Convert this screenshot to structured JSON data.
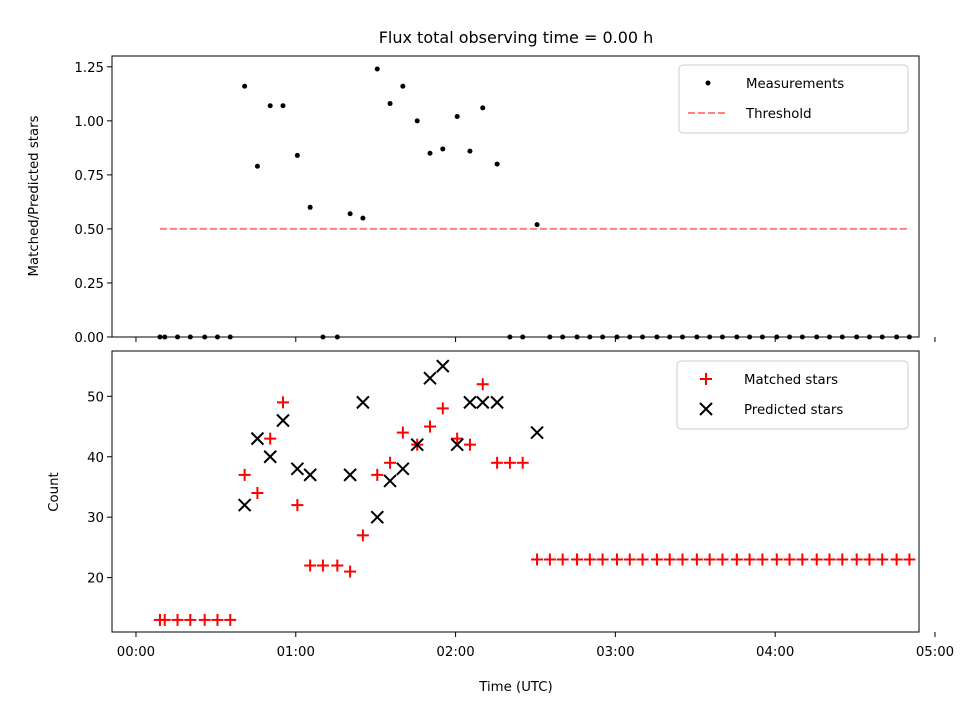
{
  "chart_data": [
    {
      "type": "scatter",
      "title": "Flux total observing time = 0.00 h",
      "xlabel": "",
      "ylabel": "Matched/Predicted stars",
      "xlim": [
        -0.15,
        4.9
      ],
      "ylim": [
        0,
        1.3
      ],
      "yticks": [
        0.0,
        0.25,
        0.5,
        0.75,
        1.0,
        1.25
      ],
      "ytick_labels": [
        "0.00",
        "0.25",
        "0.50",
        "0.75",
        "1.00",
        "1.25"
      ],
      "xticks": [
        0,
        1,
        2,
        3,
        4,
        5
      ],
      "show_xtick_labels": false,
      "legend_position": "top-right",
      "series": [
        {
          "name": "Measurements",
          "marker": "dot",
          "color": "#000000",
          "x": [
            0.15,
            0.18,
            0.26,
            0.34,
            0.43,
            0.51,
            0.59,
            0.68,
            0.76,
            0.84,
            0.92,
            1.01,
            1.09,
            1.17,
            1.26,
            1.34,
            1.42,
            1.51,
            1.59,
            1.67,
            1.76,
            1.84,
            1.92,
            2.01,
            2.09,
            2.17,
            2.26,
            2.34,
            2.42,
            2.51,
            2.59,
            2.67,
            2.76,
            2.84,
            2.92,
            3.01,
            3.09,
            3.17,
            3.26,
            3.34,
            3.42,
            3.51,
            3.59,
            3.67,
            3.76,
            3.84,
            3.92,
            4.01,
            4.09,
            4.17,
            4.26,
            4.34,
            4.42,
            4.51,
            4.59,
            4.67,
            4.76,
            4.84
          ],
          "y": [
            0,
            0,
            0,
            0,
            0,
            0,
            0,
            1.16,
            0.79,
            1.07,
            1.07,
            0.84,
            0.6,
            0,
            0,
            0.57,
            0.55,
            1.24,
            1.08,
            1.16,
            1.0,
            0.85,
            0.87,
            1.02,
            0.86,
            1.06,
            0.8,
            0,
            0,
            0.52,
            0,
            0,
            0,
            0,
            0,
            0,
            0,
            0,
            0,
            0,
            0,
            0,
            0,
            0,
            0,
            0,
            0,
            0,
            0,
            0,
            0,
            0,
            0,
            0,
            0,
            0,
            0,
            0
          ]
        },
        {
          "name": "Threshold",
          "marker": "dashed-line",
          "color": "#ff8080",
          "x": [
            0.15,
            4.84
          ],
          "y": [
            0.5,
            0.5
          ]
        }
      ]
    },
    {
      "type": "scatter",
      "title": "",
      "xlabel": "Time (UTC)",
      "ylabel": "Count",
      "xlim": [
        -0.15,
        4.9
      ],
      "ylim": [
        11,
        57.5
      ],
      "yticks": [
        20,
        30,
        40,
        50
      ],
      "ytick_labels": [
        "20",
        "30",
        "40",
        "50"
      ],
      "xticks": [
        0,
        1,
        2,
        3,
        4,
        5
      ],
      "xtick_labels": [
        "00:00",
        "01:00",
        "02:00",
        "03:00",
        "04:00",
        "05:00"
      ],
      "legend_position": "top-right",
      "series": [
        {
          "name": "Matched stars",
          "marker": "plus",
          "color": "#ff0000",
          "x": [
            0.15,
            0.18,
            0.26,
            0.34,
            0.43,
            0.51,
            0.59,
            0.68,
            0.76,
            0.84,
            0.92,
            1.01,
            1.09,
            1.17,
            1.26,
            1.34,
            1.42,
            1.51,
            1.59,
            1.67,
            1.76,
            1.84,
            1.92,
            2.01,
            2.09,
            2.17,
            2.26,
            2.34,
            2.42,
            2.51,
            2.59,
            2.67,
            2.76,
            2.84,
            2.92,
            3.01,
            3.09,
            3.17,
            3.26,
            3.34,
            3.42,
            3.51,
            3.59,
            3.67,
            3.76,
            3.84,
            3.92,
            4.01,
            4.09,
            4.17,
            4.26,
            4.34,
            4.42,
            4.51,
            4.59,
            4.67,
            4.76,
            4.84
          ],
          "y": [
            13,
            13,
            13,
            13,
            13,
            13,
            13,
            37,
            34,
            43,
            49,
            32,
            22,
            22,
            22,
            21,
            27,
            37,
            39,
            44,
            42,
            45,
            48,
            43,
            42,
            52,
            39,
            39,
            39,
            23,
            23,
            23,
            23,
            23,
            23,
            23,
            23,
            23,
            23,
            23,
            23,
            23,
            23,
            23,
            23,
            23,
            23,
            23,
            23,
            23,
            23,
            23,
            23,
            23,
            23,
            23,
            23,
            23
          ]
        },
        {
          "name": "Predicted stars",
          "marker": "x",
          "color": "#000000",
          "x": [
            0.68,
            0.76,
            0.84,
            0.92,
            1.01,
            1.09,
            1.34,
            1.42,
            1.51,
            1.59,
            1.67,
            1.76,
            1.84,
            1.92,
            2.01,
            2.09,
            2.17,
            2.26,
            2.51
          ],
          "y": [
            32,
            43,
            40,
            46,
            38,
            37,
            37,
            49,
            30,
            36,
            38,
            42,
            53,
            55,
            42,
            49,
            49,
            49,
            44
          ]
        }
      ]
    }
  ]
}
